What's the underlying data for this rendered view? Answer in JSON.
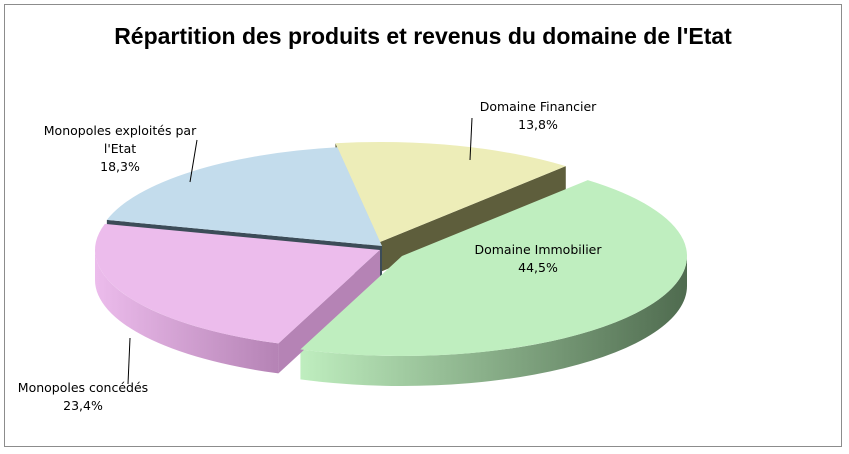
{
  "chart_data": {
    "type": "pie",
    "title": "Répartition des produits et revenus du domaine de l'Etat",
    "slices": [
      {
        "name": "Domaine Financier",
        "value": 13.8,
        "label_lines": [
          "Domaine Financier",
          "13,8%"
        ],
        "color": "#ededb8",
        "side_color": "#5e5e3c"
      },
      {
        "name": "Domaine Immobilier",
        "value": 44.5,
        "label_lines": [
          "Domaine Immobilier",
          "44,5%"
        ],
        "color": "#bfeebf",
        "side_color": "#4f6b4f"
      },
      {
        "name": "Monopoles concédés",
        "value": 23.4,
        "label_lines": [
          "Monopoles concédés",
          "23,4%"
        ],
        "color": "#ecbcec",
        "side_color": "#b583b5"
      },
      {
        "name": "Monopoles exploités par l'Etat",
        "value": 18.3,
        "label_lines": [
          "Monopoles exploités par",
          "l'Etat",
          "18,3%"
        ],
        "color": "#c3dcec",
        "side_color": "#3c4c58"
      }
    ],
    "legend": "none"
  }
}
